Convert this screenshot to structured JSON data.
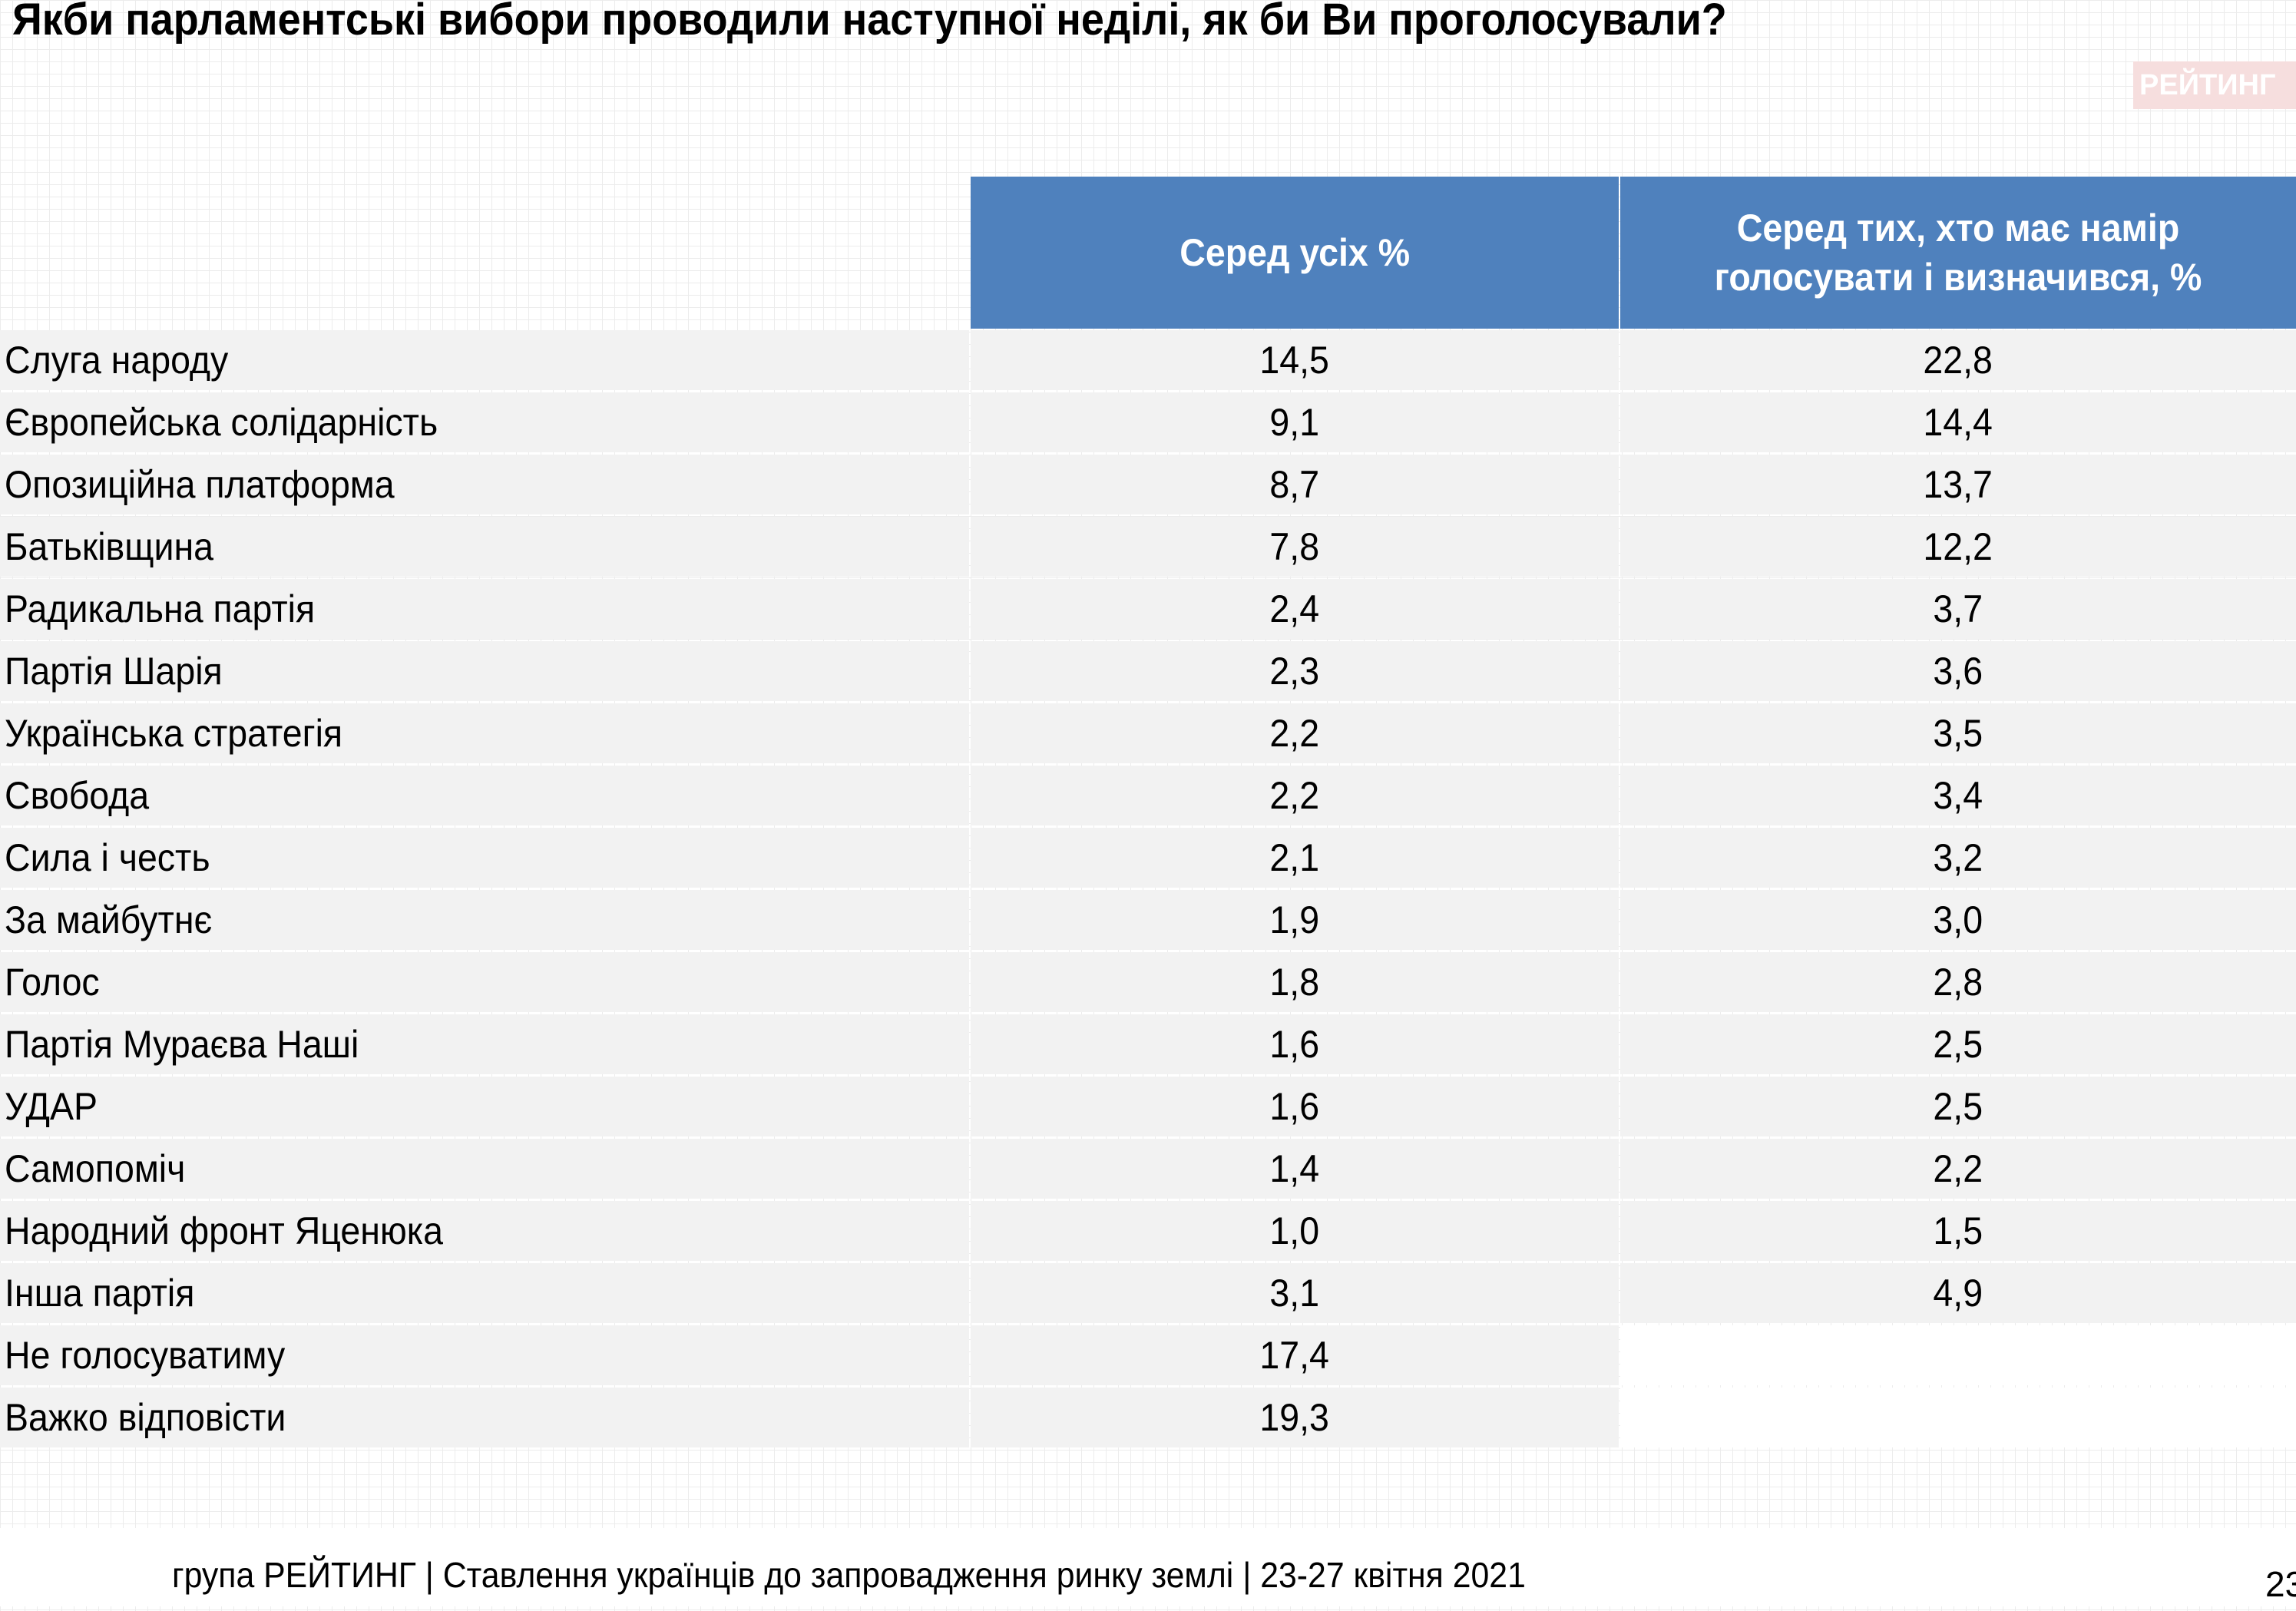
{
  "title": "Якби парламентські вибори проводили наступної неділі, як би Ви проголосували?",
  "logo_text": "РЕЙТИНГ",
  "table": {
    "headers": [
      "Серед усіх %",
      "Серед тих, хто має намір голосувати і визначився, %"
    ],
    "rows": [
      {
        "party": "Слуга народу",
        "all": "14,5",
        "decided": "22,8"
      },
      {
        "party": "Європейська солідарність",
        "all": "9,1",
        "decided": "14,4"
      },
      {
        "party": "Опозиційна платформа",
        "all": "8,7",
        "decided": "13,7"
      },
      {
        "party": "Батьківщина",
        "all": "7,8",
        "decided": "12,2"
      },
      {
        "party": "Радикальна партія",
        "all": "2,4",
        "decided": "3,7"
      },
      {
        "party": "Партія Шарія",
        "all": "2,3",
        "decided": "3,6"
      },
      {
        "party": "Українська стратегія",
        "all": "2,2",
        "decided": "3,5"
      },
      {
        "party": "Свобода",
        "all": "2,2",
        "decided": "3,4"
      },
      {
        "party": "Сила і честь",
        "all": "2,1",
        "decided": "3,2"
      },
      {
        "party": "За майбутнє",
        "all": "1,9",
        "decided": "3,0"
      },
      {
        "party": "Голос",
        "all": "1,8",
        "decided": "2,8"
      },
      {
        "party": "Партія Мураєва Наші",
        "all": "1,6",
        "decided": "2,5"
      },
      {
        "party": "УДАР",
        "all": "1,6",
        "decided": "2,5"
      },
      {
        "party": "Самопоміч",
        "all": "1,4",
        "decided": "2,2"
      },
      {
        "party": "Народний фронт Яценюка",
        "all": "1,0",
        "decided": "1,5"
      },
      {
        "party": "Інша партія",
        "all": "3,1",
        "decided": "4,9"
      },
      {
        "party": "Не голосуватиму",
        "all": "17,4",
        "decided": ""
      },
      {
        "party": "Важко відповісти",
        "all": "19,3",
        "decided": ""
      }
    ]
  },
  "footer": "група РЕЙТИНГ | Ставлення українців до запровадження ринку землі  | 23-27 квітня 2021",
  "page_number": "23",
  "colors": {
    "header_bg": "#4f81bd",
    "header_text": "#ffffff",
    "row_bg": "#f2f2f2",
    "logo_bg": "#f6dede"
  }
}
